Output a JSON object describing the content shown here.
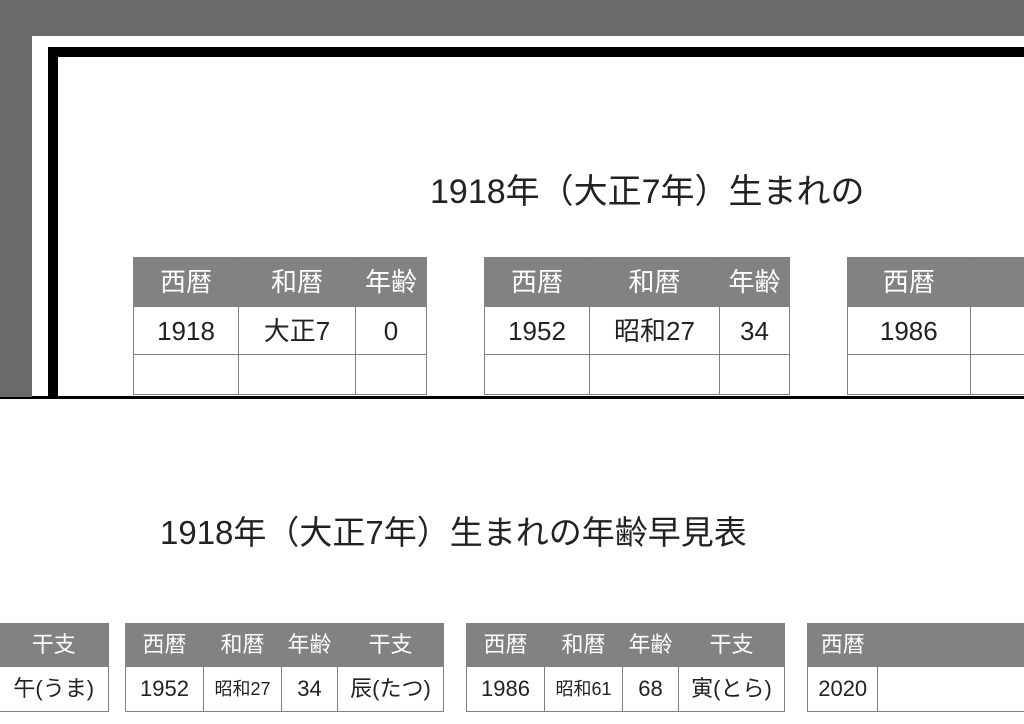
{
  "title_top": "1918年（大正7年）生まれの",
  "title_bottom": "1918年（大正7年）生まれの年齢早見表",
  "headers": {
    "seireki": "西暦",
    "wareki": "和暦",
    "nenrei": "年齢",
    "eto": "干支"
  },
  "top_tables": {
    "a": {
      "seireki": "1918",
      "wareki": "大正7",
      "nenrei": "0"
    },
    "b": {
      "seireki": "1952",
      "wareki": "昭和27",
      "nenrei": "34"
    },
    "c": {
      "seireki": "1986"
    }
  },
  "bottom_tables": {
    "a": {
      "eto": "午(うま)"
    },
    "b": {
      "seireki": "1952",
      "wareki": "昭和27",
      "nenrei": "34",
      "eto": "辰(たつ)"
    },
    "c": {
      "seireki": "1986",
      "wareki": "昭和61",
      "nenrei": "68",
      "eto": "寅(とら)"
    },
    "d": {
      "seireki": "2020"
    }
  },
  "colors": {
    "frame_grey": "#6a6a6a",
    "frame_black": "#000000",
    "header_bg": "#828282",
    "header_fg": "#ffffff",
    "cell_border": "#808080",
    "text": "#222222",
    "background": "#ffffff"
  }
}
